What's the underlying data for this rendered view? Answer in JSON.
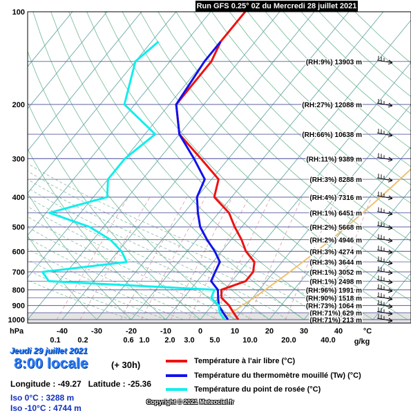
{
  "header": {
    "title": "Run GFS 0.25° 0Z du Mercredi 28 juillet 2021"
  },
  "chart_data": {
    "type": "line",
    "title": "Run GFS 0.25° 0Z du Mercredi 28 juillet 2021",
    "pressure_axis_unit": "hPa",
    "temperature_axis_unit": "°C",
    "mixing_ratio_unit": "g/kg",
    "pressure_ticks": [
      "100",
      "200",
      "300",
      "400",
      "500",
      "600",
      "700",
      "800",
      "900",
      "1000"
    ],
    "temperature_ticks": [
      "-40",
      "-30",
      "-20",
      "-10",
      "0",
      "10",
      "20",
      "30",
      "40"
    ],
    "mixing_ratio_ticks": [
      "0.1",
      "0.2",
      "0.6",
      "1.0",
      "2.0",
      "3.0",
      "5.0",
      "10.0",
      "20.0",
      "40.0"
    ],
    "level_labels": [
      {
        "p": 145,
        "text": "(RH:9%) 13903 m"
      },
      {
        "p": 200,
        "text": "(RH:27%) 12088 m"
      },
      {
        "p": 250,
        "text": "(RH:66%) 10638 m"
      },
      {
        "p": 300,
        "text": "(RH:11%) 9389 m"
      },
      {
        "p": 350,
        "text": "(RH:3%) 8288 m"
      },
      {
        "p": 400,
        "text": "(RH:4%) 7316 m"
      },
      {
        "p": 450,
        "text": "(RH:1%) 6451 m"
      },
      {
        "p": 500,
        "text": "(RH:2%) 5668 m"
      },
      {
        "p": 550,
        "text": "(RH:2%) 4946 m"
      },
      {
        "p": 600,
        "text": "(RH:3%) 4274 m"
      },
      {
        "p": 650,
        "text": "(RH:3%) 3644 m"
      },
      {
        "p": 700,
        "text": "(RH:1%) 3052 m"
      },
      {
        "p": 750,
        "text": "(RH:1%) 2498 m"
      },
      {
        "p": 800,
        "text": "(RH:96%) 1991 m"
      },
      {
        "p": 850,
        "text": "(RH:90%) 1518 m"
      },
      {
        "p": 900,
        "text": "(RH:73%) 1064 m"
      },
      {
        "p": 950,
        "text": "(RH:71%) 629 m"
      },
      {
        "p": 1000,
        "text": "(RH:71%) 213 m"
      }
    ],
    "series": [
      {
        "name": "Température à l'air libre (°C)",
        "color": "#ee1111",
        "points": [
          [
            100,
            -60
          ],
          [
            125,
            -60
          ],
          [
            145,
            -58
          ],
          [
            200,
            -58
          ],
          [
            250,
            -50
          ],
          [
            300,
            -38
          ],
          [
            350,
            -28
          ],
          [
            400,
            -25
          ],
          [
            450,
            -17
          ],
          [
            500,
            -12
          ],
          [
            550,
            -7
          ],
          [
            600,
            -3
          ],
          [
            650,
            2
          ],
          [
            700,
            4
          ],
          [
            750,
            4
          ],
          [
            800,
            -1
          ],
          [
            850,
            1
          ],
          [
            900,
            5
          ],
          [
            950,
            8
          ],
          [
            1000,
            11
          ]
        ]
      },
      {
        "name": "Température du thermomètre mouillé (Tw) (°C)",
        "color": "#1111ee",
        "points": [
          [
            125,
            -60
          ],
          [
            145,
            -60
          ],
          [
            200,
            -58
          ],
          [
            250,
            -50
          ],
          [
            300,
            -40
          ],
          [
            350,
            -32
          ],
          [
            400,
            -30
          ],
          [
            450,
            -26
          ],
          [
            500,
            -22
          ],
          [
            550,
            -17
          ],
          [
            600,
            -12
          ],
          [
            650,
            -8
          ],
          [
            700,
            -7
          ],
          [
            750,
            -6
          ],
          [
            800,
            -2
          ],
          [
            850,
            0
          ],
          [
            900,
            2
          ],
          [
            950,
            5
          ],
          [
            1000,
            8
          ]
        ]
      },
      {
        "name": "Température du point de rosée (°C)",
        "color": "#11eeee",
        "points": [
          [
            125,
            -78
          ],
          [
            145,
            -80
          ],
          [
            200,
            -73
          ],
          [
            250,
            -57
          ],
          [
            300,
            -60
          ],
          [
            350,
            -60
          ],
          [
            400,
            -56
          ],
          [
            450,
            -69
          ],
          [
            500,
            -54
          ],
          [
            550,
            -45
          ],
          [
            600,
            -39
          ],
          [
            650,
            -35
          ],
          [
            700,
            -57
          ],
          [
            750,
            -53
          ],
          [
            800,
            -3
          ],
          [
            850,
            -2
          ],
          [
            900,
            2
          ],
          [
            950,
            4
          ],
          [
            1000,
            7
          ]
        ]
      }
    ],
    "parcel_color": "#f0c070"
  },
  "info": {
    "date": "Jeudi 29 juillet 2021",
    "hour": "8:00 locale",
    "forecast": "(+ 30h)",
    "coords": "Longitude : -49.27   Latitude : -25.36",
    "iso0": "Iso 0°C : 3288 m",
    "iso10": "Iso -10°C : 4744 m",
    "copyright": "Copyright © 2021 Meteociel.fr"
  },
  "legend": [
    {
      "label": "Température à l'air libre (°C)",
      "color": "#ee1111"
    },
    {
      "label": "Température du thermomètre mouillé (Tw) (°C)",
      "color": "#1111ee"
    },
    {
      "label": "Température du point de rosée (°C)",
      "color": "#11eeee"
    }
  ]
}
